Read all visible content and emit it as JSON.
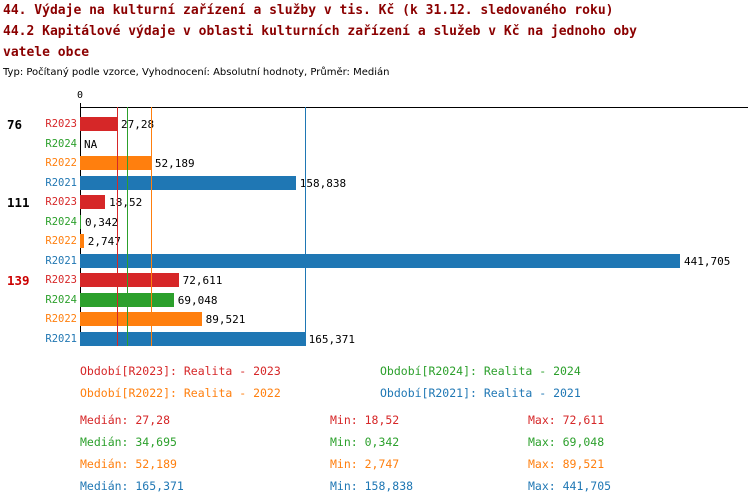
{
  "titles": {
    "line1": "44. Výdaje na kulturní zařízení a služby v tis. Kč (k 31.12. sledovaného roku)",
    "line2": "44.2 Kapitálové výdaje v oblasti kulturních zařízení a služeb v Kč na jednoho oby",
    "line3": "vatele obce",
    "meta": "Typ: Počítaný podle vzorce, Vyhodnocení: Absolutní hodnoty, Průměr: Medián"
  },
  "colors": {
    "title": "#8b0000",
    "axis": "#000000",
    "series_r2023": "#d62728",
    "series_r2024": "#2ca02c",
    "series_r2022": "#ff7f0e",
    "series_r2021": "#1f77b4",
    "group_highlight": "#cc0000"
  },
  "chart_data": {
    "type": "bar",
    "orientation": "horizontal",
    "x_axis": {
      "tick_label": "0",
      "min": 0,
      "max": 450,
      "position": "top"
    },
    "groups": [
      {
        "label": "76",
        "label_color": "#000000",
        "bars": [
          {
            "series": "R2023",
            "value": 27.28,
            "display": "27,28",
            "color": "#d62728"
          },
          {
            "series": "R2024",
            "value": null,
            "display": "NA",
            "color": "#2ca02c"
          },
          {
            "series": "R2022",
            "value": 52.189,
            "display": "52,189",
            "color": "#ff7f0e"
          },
          {
            "series": "R2021",
            "value": 158.838,
            "display": "158,838",
            "color": "#1f77b4"
          }
        ]
      },
      {
        "label": "111",
        "label_color": "#000000",
        "bars": [
          {
            "series": "R2023",
            "value": 18.52,
            "display": "18,52",
            "color": "#d62728"
          },
          {
            "series": "R2024",
            "value": 0.342,
            "display": "0,342",
            "color": "#2ca02c"
          },
          {
            "series": "R2022",
            "value": 2.747,
            "display": "2,747",
            "color": "#ff7f0e"
          },
          {
            "series": "R2021",
            "value": 441.705,
            "display": "441,705",
            "color": "#1f77b4"
          }
        ]
      },
      {
        "label": "139",
        "label_color": "#cc0000",
        "bars": [
          {
            "series": "R2023",
            "value": 72.611,
            "display": "72,611",
            "color": "#d62728"
          },
          {
            "series": "R2024",
            "value": 69.048,
            "display": "69,048",
            "color": "#2ca02c"
          },
          {
            "series": "R2022",
            "value": 89.521,
            "display": "89,521",
            "color": "#ff7f0e"
          },
          {
            "series": "R2021",
            "value": 165.371,
            "display": "165,371",
            "color": "#1f77b4"
          }
        ]
      }
    ],
    "median_lines": [
      {
        "series": "R2023",
        "value": 27.28,
        "color": "#d62728"
      },
      {
        "series": "R2024",
        "value": 34.695,
        "color": "#2ca02c"
      },
      {
        "series": "R2022",
        "value": 52.189,
        "color": "#ff7f0e"
      },
      {
        "series": "R2021",
        "value": 165.371,
        "color": "#1f77b4"
      }
    ]
  },
  "legend": [
    {
      "label": "Období[R2023]: Realita - 2023",
      "color": "#d62728"
    },
    {
      "label": "Období[R2024]: Realita - 2024",
      "color": "#2ca02c"
    },
    {
      "label": "Období[R2022]: Realita - 2022",
      "color": "#ff7f0e"
    },
    {
      "label": "Období[R2021]: Realita - 2021",
      "color": "#1f77b4"
    }
  ],
  "stats": [
    {
      "series": "R2023",
      "median": "Medián: 27,28",
      "min": "Min: 18,52",
      "max": "Max: 72,611",
      "color": "#d62728"
    },
    {
      "series": "R2024",
      "median": "Medián: 34,695",
      "min": "Min: 0,342",
      "max": "Max: 69,048",
      "color": "#2ca02c"
    },
    {
      "series": "R2022",
      "median": "Medián: 52,189",
      "min": "Min: 2,747",
      "max": "Max: 89,521",
      "color": "#ff7f0e"
    },
    {
      "series": "R2021",
      "median": "Medián: 165,371",
      "min": "Min: 158,838",
      "max": "Max: 441,705",
      "color": "#1f77b4"
    }
  ]
}
